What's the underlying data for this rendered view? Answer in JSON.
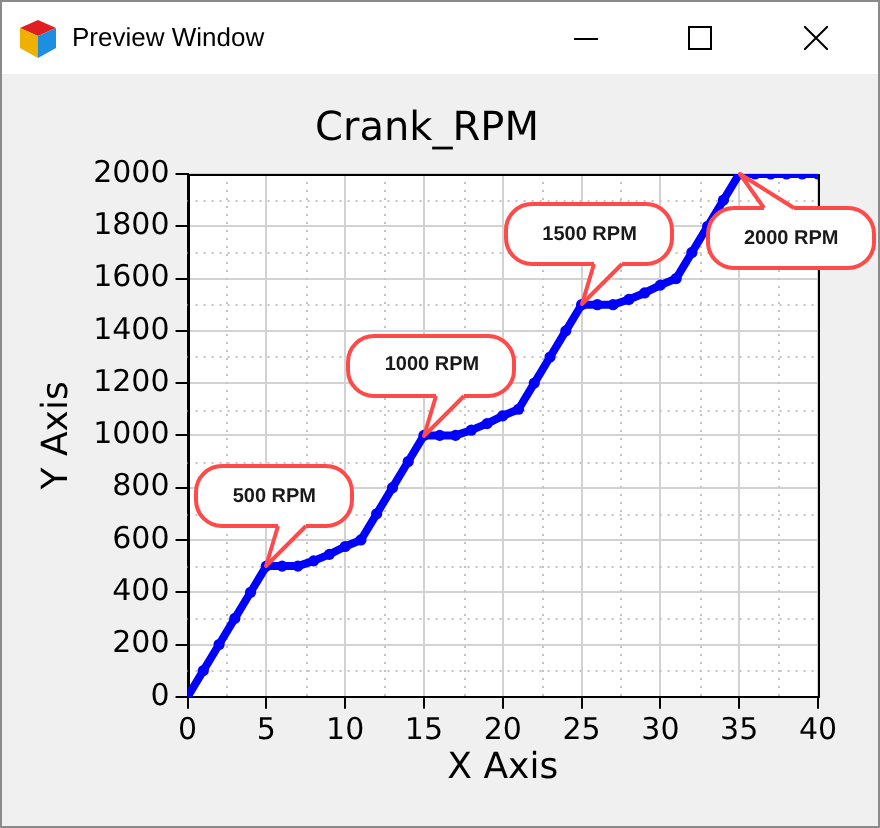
{
  "chart_data": {
    "type": "line",
    "title": "Crank_RPM",
    "xlabel": "X Axis",
    "ylabel": "Y Axis",
    "x": [
      0,
      1,
      2,
      3,
      4,
      5,
      6,
      7,
      8,
      9,
      10,
      11,
      12,
      13,
      14,
      15,
      16,
      17,
      18,
      19,
      20,
      21,
      22,
      23,
      24,
      25,
      26,
      27,
      28,
      29,
      30,
      31,
      32,
      33,
      34,
      35,
      36,
      37,
      38,
      39,
      40
    ],
    "series": [
      {
        "color": "#0000ff",
        "values": [
          0,
          100,
          200,
          300,
          400,
          500,
          500,
          500,
          520,
          545,
          575,
          600,
          700,
          800,
          900,
          1000,
          1000,
          1000,
          1020,
          1045,
          1075,
          1100,
          1200,
          1300,
          1400,
          1500,
          1500,
          1500,
          1520,
          1545,
          1575,
          1600,
          1700,
          1800,
          1900,
          2000,
          2000,
          2000,
          2000,
          2000,
          2000
        ]
      }
    ],
    "xlim": [
      0,
      40
    ],
    "ylim": [
      0,
      2000
    ],
    "xticks": [
      0,
      5,
      10,
      15,
      20,
      25,
      30,
      35,
      40
    ],
    "yticks": [
      0,
      200,
      400,
      600,
      800,
      1000,
      1200,
      1400,
      1600,
      1800,
      2000
    ],
    "grid": true,
    "marker": "circle",
    "line_style": "solid",
    "annotations": [
      "Preview Window",
      {
        "text": "500 RPM",
        "x": 5,
        "y": 500
      },
      {
        "text": "1000 RPM",
        "x": 15,
        "y": 1000
      },
      {
        "text": "1500 RPM",
        "x": 25,
        "y": 1500
      },
      {
        "text": "2000 RPM",
        "x": 35,
        "y": 2000
      }
    ]
  }
}
